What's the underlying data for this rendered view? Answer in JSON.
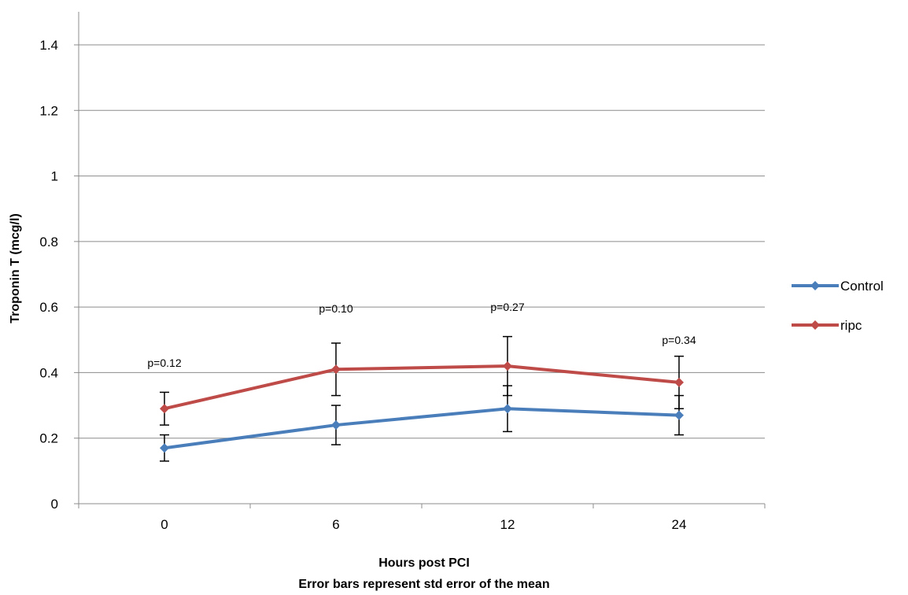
{
  "chart_data": {
    "type": "line",
    "xlabel": "Hours post PCI",
    "subtitle": "Error bars represent std error of the mean",
    "ylabel": "Troponin T (mcg/l)",
    "categories": [
      "0",
      "6",
      "12",
      "24"
    ],
    "ylim": [
      0,
      1.4
    ],
    "yticks": [
      "0",
      "0.2",
      "0.4",
      "0.6",
      "0.8",
      "1",
      "1.2",
      "1.4"
    ],
    "ytick_values": [
      0,
      0.2,
      0.4,
      0.6,
      0.8,
      1.0,
      1.2,
      1.4
    ],
    "grid": true,
    "legend_position": "right",
    "series": [
      {
        "name": "Control",
        "color": "#4a7ebb",
        "values": [
          0.17,
          0.24,
          0.29,
          0.27
        ],
        "err_low": [
          0.13,
          0.18,
          0.22,
          0.21
        ],
        "err_high": [
          0.21,
          0.3,
          0.36,
          0.33
        ]
      },
      {
        "name": "ripc",
        "color": "#be4b48",
        "values": [
          0.29,
          0.41,
          0.42,
          0.37
        ],
        "err_low": [
          0.24,
          0.33,
          0.33,
          0.29
        ],
        "err_high": [
          0.34,
          0.49,
          0.51,
          0.45
        ]
      }
    ],
    "annotations": [
      {
        "text": "p=0.12",
        "category": "0",
        "y": 0.43
      },
      {
        "text": "p=0.10",
        "category": "6",
        "y": 0.595
      },
      {
        "text": "p=0.27",
        "category": "12",
        "y": 0.6
      },
      {
        "text": "p=0.34",
        "category": "24",
        "y": 0.5
      }
    ]
  }
}
